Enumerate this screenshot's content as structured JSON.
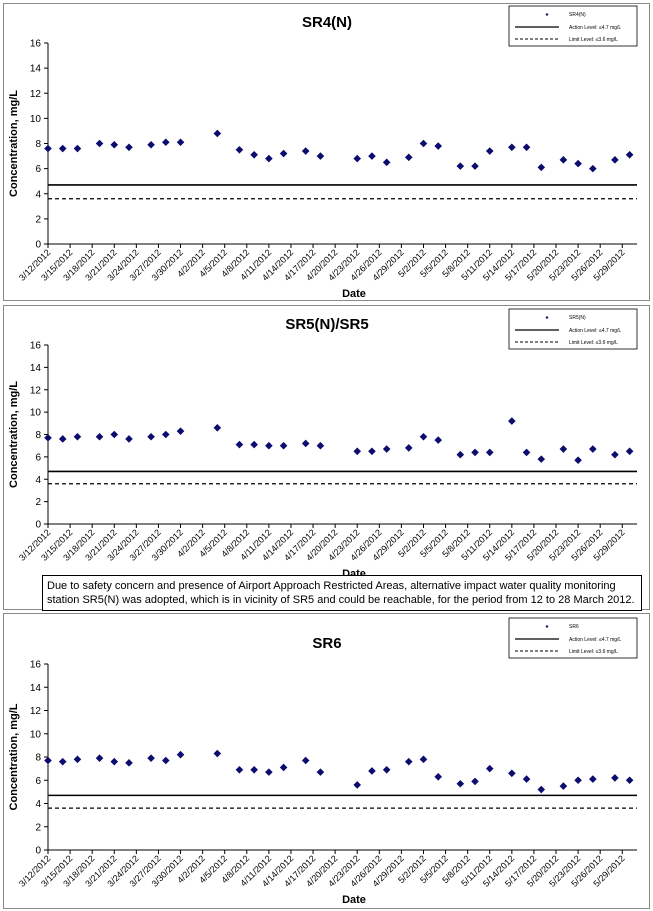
{
  "charts_common": {
    "x_label": "Date",
    "y_label": "Concentration, mg/L",
    "x_ticks": [
      "3/12/2012",
      "3/15/2012",
      "3/18/2012",
      "3/21/2012",
      "3/24/2012",
      "3/27/2012",
      "3/30/2012",
      "4/2/2012",
      "4/5/2012",
      "4/8/2012",
      "4/11/2012",
      "4/14/2012",
      "4/17/2012",
      "4/20/2012",
      "4/23/2012",
      "4/26/2012",
      "4/29/2012",
      "5/2/2012",
      "5/5/2012",
      "5/8/2012",
      "5/11/2012",
      "5/14/2012",
      "5/17/2012",
      "5/20/2012",
      "5/23/2012",
      "5/26/2012",
      "5/29/2012"
    ],
    "y_ticks": [
      "0",
      "2",
      "4",
      "6",
      "8",
      "10",
      "12",
      "14",
      "16"
    ],
    "action_level_legend": "Action Level: ≤4.7 mg/L",
    "limit_level_legend": "Limit Level: ≤3.6 mg/L"
  },
  "caption": "Due to safety concern and presence of Airport Approach Restricted Areas, alternative impact water quality monitoring station SR5(N) was adopted, which is in vicinity of SR5 and could be reachable, for the period from 12 to 28 March 2012.",
  "colors": {
    "marker": "#0c0c6e",
    "line": "#000000",
    "frame": "#8a8a8a"
  },
  "chart_data": [
    {
      "type": "scatter",
      "title": "SR4(N)",
      "series_name": "SR4(N)",
      "xlabel": "Date",
      "ylabel": "Concentration, mg/L",
      "ylim": [
        0,
        16
      ],
      "xlim": [
        "3/12/2012",
        "5/31/2012"
      ],
      "action_level": 4.7,
      "limit_level": 3.6,
      "points": [
        [
          "3/12/2012",
          7.6
        ],
        [
          "3/14/2012",
          7.6
        ],
        [
          "3/16/2012",
          7.6
        ],
        [
          "3/19/2012",
          8.0
        ],
        [
          "3/21/2012",
          7.9
        ],
        [
          "3/23/2012",
          7.7
        ],
        [
          "3/26/2012",
          7.9
        ],
        [
          "3/28/2012",
          8.1
        ],
        [
          "3/30/2012",
          8.1
        ],
        [
          "4/4/2012",
          8.8
        ],
        [
          "4/7/2012",
          7.5
        ],
        [
          "4/9/2012",
          7.1
        ],
        [
          "4/11/2012",
          6.8
        ],
        [
          "4/13/2012",
          7.2
        ],
        [
          "4/16/2012",
          7.4
        ],
        [
          "4/18/2012",
          7.0
        ],
        [
          "4/23/2012",
          6.8
        ],
        [
          "4/25/2012",
          7.0
        ],
        [
          "4/27/2012",
          6.5
        ],
        [
          "4/30/2012",
          6.9
        ],
        [
          "5/2/2012",
          8.0
        ],
        [
          "5/4/2012",
          7.8
        ],
        [
          "5/7/2012",
          6.2
        ],
        [
          "5/9/2012",
          6.2
        ],
        [
          "5/11/2012",
          7.4
        ],
        [
          "5/14/2012",
          7.7
        ],
        [
          "5/16/2012",
          7.7
        ],
        [
          "5/18/2012",
          6.1
        ],
        [
          "5/21/2012",
          6.7
        ],
        [
          "5/23/2012",
          6.4
        ],
        [
          "5/25/2012",
          6.0
        ],
        [
          "5/28/2012",
          6.7
        ],
        [
          "5/30/2012",
          7.1
        ]
      ]
    },
    {
      "type": "scatter",
      "title": "SR5(N)/SR5",
      "series_name": "SR5(N)",
      "xlabel": "Date",
      "ylabel": "Concentration, mg/L",
      "ylim": [
        0,
        16
      ],
      "xlim": [
        "3/12/2012",
        "5/31/2012"
      ],
      "action_level": 4.7,
      "limit_level": 3.6,
      "points": [
        [
          "3/12/2012",
          7.7
        ],
        [
          "3/14/2012",
          7.6
        ],
        [
          "3/16/2012",
          7.8
        ],
        [
          "3/19/2012",
          7.8
        ],
        [
          "3/21/2012",
          8.0
        ],
        [
          "3/23/2012",
          7.6
        ],
        [
          "3/26/2012",
          7.8
        ],
        [
          "3/28/2012",
          8.0
        ],
        [
          "3/30/2012",
          8.3
        ],
        [
          "4/4/2012",
          8.6
        ],
        [
          "4/7/2012",
          7.1
        ],
        [
          "4/9/2012",
          7.1
        ],
        [
          "4/11/2012",
          7.0
        ],
        [
          "4/13/2012",
          7.0
        ],
        [
          "4/16/2012",
          7.2
        ],
        [
          "4/18/2012",
          7.0
        ],
        [
          "4/23/2012",
          6.5
        ],
        [
          "4/25/2012",
          6.5
        ],
        [
          "4/27/2012",
          6.7
        ],
        [
          "4/30/2012",
          6.8
        ],
        [
          "5/2/2012",
          7.8
        ],
        [
          "5/4/2012",
          7.5
        ],
        [
          "5/7/2012",
          6.2
        ],
        [
          "5/9/2012",
          6.4
        ],
        [
          "5/11/2012",
          6.4
        ],
        [
          "5/14/2012",
          9.2
        ],
        [
          "5/16/2012",
          6.4
        ],
        [
          "5/18/2012",
          5.8
        ],
        [
          "5/21/2012",
          6.7
        ],
        [
          "5/23/2012",
          5.7
        ],
        [
          "5/25/2012",
          6.7
        ],
        [
          "5/28/2012",
          6.2
        ],
        [
          "5/30/2012",
          6.5
        ]
      ]
    },
    {
      "type": "scatter",
      "title": "SR6",
      "series_name": "SR6",
      "xlabel": "Date",
      "ylabel": "Concentration, mg/L",
      "ylim": [
        0,
        16
      ],
      "xlim": [
        "3/12/2012",
        "5/31/2012"
      ],
      "action_level": 4.7,
      "limit_level": 3.6,
      "points": [
        [
          "3/12/2012",
          7.7
        ],
        [
          "3/14/2012",
          7.6
        ],
        [
          "3/16/2012",
          7.8
        ],
        [
          "3/19/2012",
          7.9
        ],
        [
          "3/21/2012",
          7.6
        ],
        [
          "3/23/2012",
          7.5
        ],
        [
          "3/26/2012",
          7.9
        ],
        [
          "3/28/2012",
          7.7
        ],
        [
          "3/30/2012",
          8.2
        ],
        [
          "4/4/2012",
          8.3
        ],
        [
          "4/7/2012",
          6.9
        ],
        [
          "4/9/2012",
          6.9
        ],
        [
          "4/11/2012",
          6.7
        ],
        [
          "4/13/2012",
          7.1
        ],
        [
          "4/16/2012",
          7.7
        ],
        [
          "4/18/2012",
          6.7
        ],
        [
          "4/23/2012",
          5.6
        ],
        [
          "4/25/2012",
          6.8
        ],
        [
          "4/27/2012",
          6.9
        ],
        [
          "4/30/2012",
          7.6
        ],
        [
          "5/2/2012",
          7.8
        ],
        [
          "5/4/2012",
          6.3
        ],
        [
          "5/7/2012",
          5.7
        ],
        [
          "5/9/2012",
          5.9
        ],
        [
          "5/11/2012",
          7.0
        ],
        [
          "5/14/2012",
          6.6
        ],
        [
          "5/16/2012",
          6.1
        ],
        [
          "5/18/2012",
          5.2
        ],
        [
          "5/21/2012",
          5.5
        ],
        [
          "5/23/2012",
          6.0
        ],
        [
          "5/25/2012",
          6.1
        ],
        [
          "5/28/2012",
          6.2
        ],
        [
          "5/30/2012",
          6.0
        ]
      ]
    }
  ]
}
